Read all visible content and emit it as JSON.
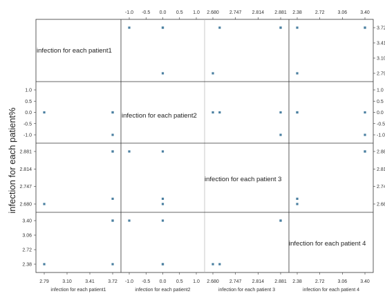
{
  "chart_data": {
    "type": "scatter",
    "subtype": "scatter-matrix",
    "ylabel": "infection for each patient%",
    "variables": [
      "infection for each patient1",
      "infection for each patient2",
      "infection for each patient 3",
      "infection for each patient 4"
    ],
    "ranges": [
      [
        2.79,
        3.72
      ],
      [
        -1.0,
        1.0
      ],
      [
        2.68,
        2.881
      ],
      [
        2.38,
        3.4
      ]
    ],
    "ticks": [
      [
        "2.79",
        "3.10",
        "3.41",
        "3.72"
      ],
      [
        "-1.0",
        "-0.5",
        "0.0",
        "0.5",
        "1.0"
      ],
      [
        "2.680",
        "2.747",
        "2.814",
        "2.881"
      ],
      [
        "2.38",
        "2.72",
        "3.06",
        "3.40"
      ]
    ],
    "top_axis_ticks": [
      [
        "-1.0",
        "-0.5",
        "0.0",
        "0.5",
        "1.0"
      ],
      [
        "2.680",
        "2.747",
        "2.814",
        "2.881"
      ],
      [
        "2.38",
        "2.72",
        "3.06",
        "3.40"
      ]
    ],
    "right_axis_ticks": [
      [
        "3.72",
        "3.41",
        "3.10",
        "2.79"
      ],
      [
        "1.0",
        "0.5",
        "0.0",
        "-0.5",
        "-1.0"
      ],
      [
        "2.881",
        "2.814",
        "2.747",
        "2.680"
      ]
    ],
    "observations": [
      [
        2.79,
        0.0,
        2.68,
        2.38
      ],
      [
        3.72,
        -1.0,
        2.881,
        3.4
      ],
      [
        3.72,
        0.0,
        2.881,
        3.4
      ],
      [
        3.72,
        0.0,
        2.7,
        2.38
      ]
    ],
    "marker_color": "#4a7fa0",
    "grid": false
  }
}
